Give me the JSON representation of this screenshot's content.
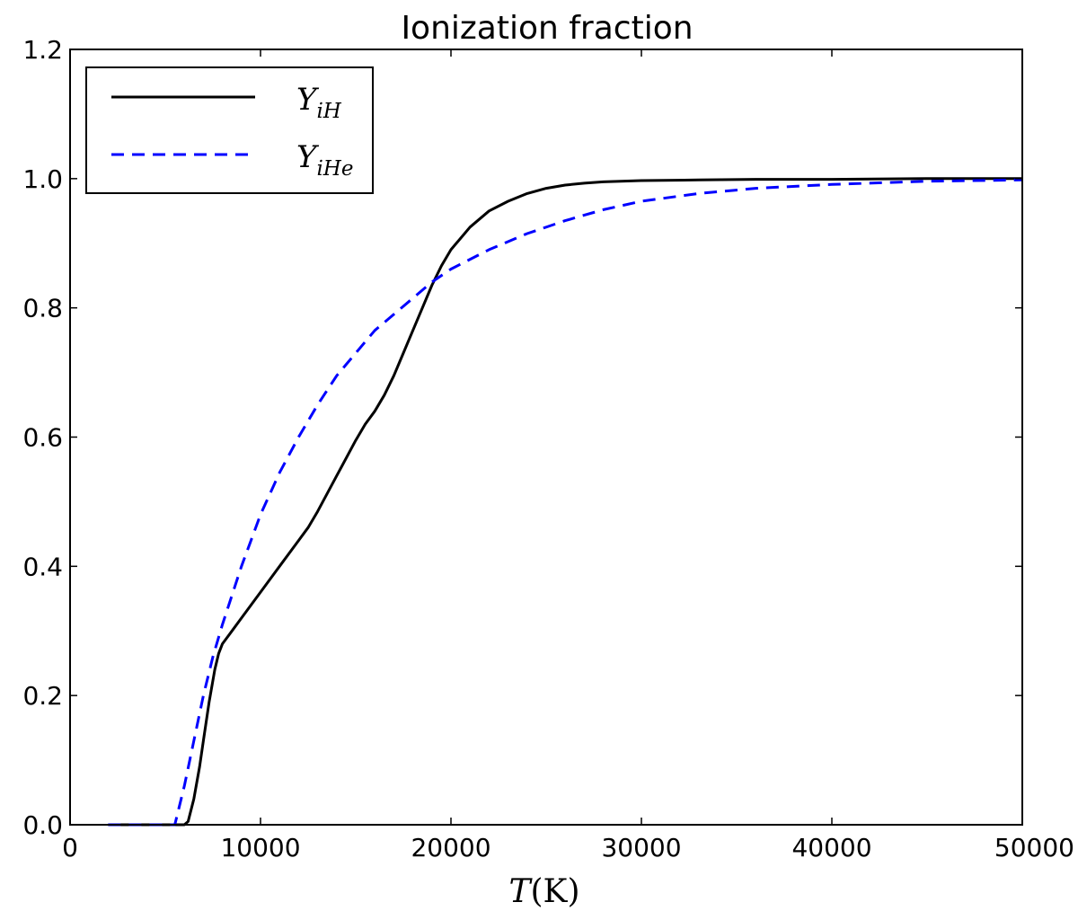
{
  "chart_data": {
    "type": "line",
    "title": "Ionization fraction",
    "xlabel": {
      "main": "T",
      "rest": "(K)"
    },
    "ylabel": "",
    "xlim": [
      0,
      50000
    ],
    "ylim": [
      0.0,
      1.2
    ],
    "xticks": [
      "0",
      "10000",
      "20000",
      "30000",
      "40000",
      "50000"
    ],
    "yticks": [
      "0.0",
      "0.2",
      "0.4",
      "0.6",
      "0.8",
      "1.0",
      "1.2"
    ],
    "grid": false,
    "legend_position": "upper-left",
    "series": [
      {
        "name": "Y_iH",
        "legend": {
          "base": "Y",
          "sub": "iH"
        },
        "color": "#000000",
        "style": "solid",
        "x": [
          2000,
          5000,
          6000,
          6200,
          6500,
          6800,
          7000,
          7300,
          7600,
          7800,
          8000,
          8500,
          9000,
          10000,
          11000,
          12000,
          12500,
          13000,
          14000,
          15000,
          15500,
          16000,
          16500,
          17000,
          17500,
          18000,
          18500,
          19000,
          19500,
          20000,
          21000,
          22000,
          23000,
          24000,
          25000,
          26000,
          27000,
          28000,
          30000,
          33000,
          36000,
          40000,
          45000,
          50000
        ],
        "y": [
          0.0,
          0.0,
          0.0,
          0.005,
          0.04,
          0.09,
          0.13,
          0.19,
          0.24,
          0.265,
          0.28,
          0.3,
          0.32,
          0.36,
          0.4,
          0.44,
          0.46,
          0.485,
          0.54,
          0.595,
          0.62,
          0.64,
          0.665,
          0.695,
          0.73,
          0.765,
          0.8,
          0.835,
          0.865,
          0.89,
          0.925,
          0.95,
          0.965,
          0.977,
          0.985,
          0.99,
          0.993,
          0.995,
          0.997,
          0.998,
          0.999,
          0.999,
          1.0,
          1.0
        ]
      },
      {
        "name": "Y_iHe",
        "legend": {
          "base": "Y",
          "sub": "iHe"
        },
        "color": "#0000ff",
        "style": "dashed",
        "x": [
          2000,
          5000,
          5500,
          6000,
          6500,
          7000,
          7500,
          8000,
          8500,
          9000,
          9500,
          10000,
          11000,
          12000,
          13000,
          14000,
          15000,
          16000,
          17000,
          18000,
          19000,
          20000,
          22000,
          24000,
          26000,
          28000,
          30000,
          33000,
          36000,
          40000,
          45000,
          50000
        ],
        "y": [
          0.0,
          0.0,
          0.0,
          0.06,
          0.13,
          0.2,
          0.26,
          0.31,
          0.355,
          0.4,
          0.44,
          0.48,
          0.545,
          0.6,
          0.65,
          0.695,
          0.73,
          0.765,
          0.79,
          0.815,
          0.84,
          0.86,
          0.89,
          0.915,
          0.935,
          0.952,
          0.965,
          0.977,
          0.985,
          0.991,
          0.996,
          0.998
        ]
      }
    ]
  }
}
